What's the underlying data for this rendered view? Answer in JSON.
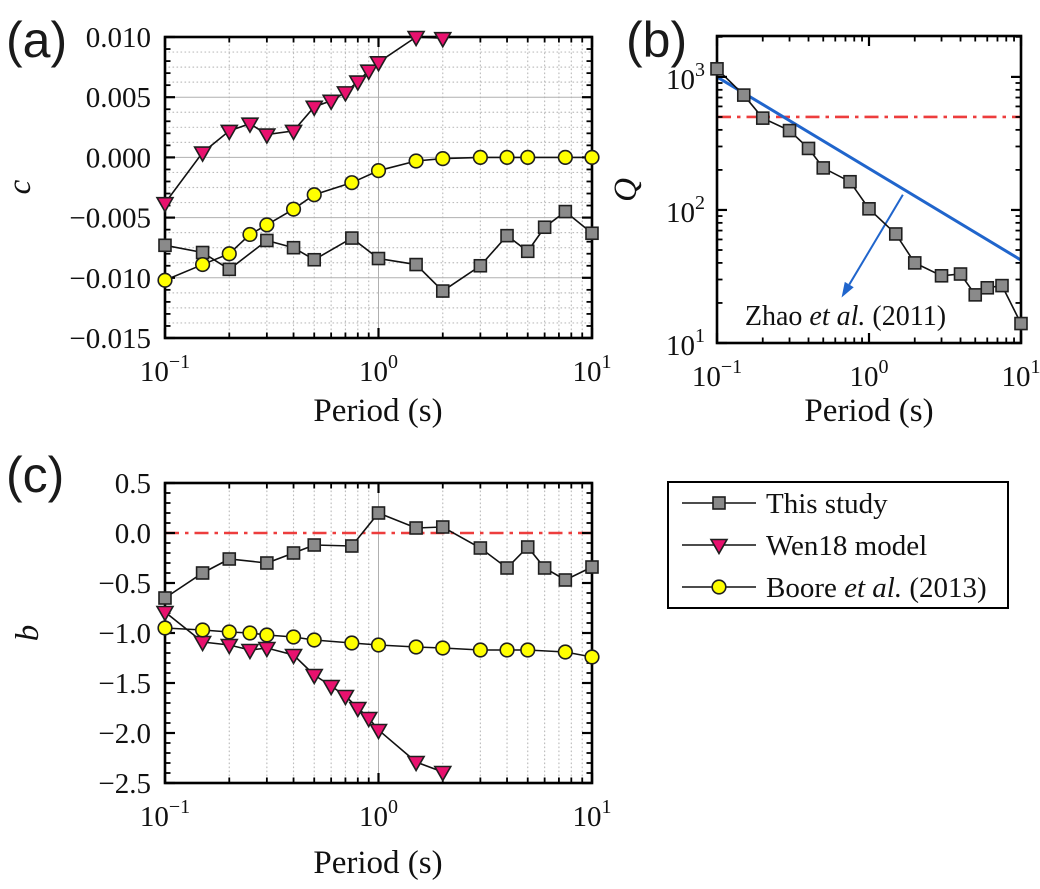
{
  "colors": {
    "gray": "#8a8a8a",
    "gray_edge": "#1f1f1f",
    "magenta": "#e8116e",
    "yellow": "#ffff00",
    "blue": "#2065cc",
    "red": "#ed3d3d",
    "line": "#111111",
    "grid_solid": "#b0b0b0",
    "grid_dot": "#bdbdbd"
  },
  "legend": {
    "entries": [
      {
        "marker": "square",
        "color": "gray",
        "label_parts": [
          {
            "t": "This study"
          }
        ]
      },
      {
        "marker": "triangle",
        "color": "magenta",
        "label_parts": [
          {
            "t": "Wen18 model"
          }
        ]
      },
      {
        "marker": "circle",
        "color": "yellow",
        "label_parts": [
          {
            "t": "Boore "
          },
          {
            "t": "et al.",
            "italic": true
          },
          {
            "t": " (2013)"
          }
        ]
      }
    ]
  },
  "chart_data": [
    {
      "id": "a",
      "panel_label": "(a)",
      "type": "line",
      "xlabel": "Period (s)",
      "ylabel": "c",
      "x_scale": "log",
      "xlim": [
        0.1,
        10
      ],
      "x_ticks": [
        0.1,
        1,
        10
      ],
      "x_tick_labels": [
        {
          "m": "10",
          "e": "−1"
        },
        {
          "m": "10",
          "e": "0"
        },
        {
          "m": "10",
          "e": "1"
        }
      ],
      "y_scale": "linear",
      "ylim": [
        -0.015,
        0.01
      ],
      "y_ticks": [
        0.01,
        0.005,
        0.0,
        -0.005,
        -0.01,
        -0.015
      ],
      "y_tick_labels": [
        "0.010",
        "0.005",
        "0.000",
        "−0.005",
        "−0.010",
        "−0.015"
      ],
      "y_minor_step": 0.001,
      "grid": {
        "x_major": true,
        "x_minor_dotted": true,
        "y_major": true,
        "y_minor_dotted": true,
        "y_minor_grid_step": 0.00125
      },
      "series": [
        {
          "name": "This study",
          "marker": "square",
          "color": "gray",
          "x": [
            0.1,
            0.15,
            0.2,
            0.3,
            0.4,
            0.5,
            0.75,
            1,
            1.5,
            2,
            3,
            4,
            5,
            6,
            7.5,
            10
          ],
          "y": [
            -0.0073,
            -0.0079,
            -0.0093,
            -0.0069,
            -0.0075,
            -0.0085,
            -0.0067,
            -0.0084,
            -0.0089,
            -0.0111,
            -0.009,
            -0.0065,
            -0.0078,
            -0.0058,
            -0.0045,
            -0.0063
          ]
        },
        {
          "name": "Wen18 model",
          "marker": "triangle",
          "color": "magenta",
          "x": [
            0.1,
            0.15,
            0.2,
            0.25,
            0.3,
            0.4,
            0.5,
            0.6,
            0.7,
            0.8,
            0.9,
            1,
            1.5,
            2
          ],
          "y": [
            -0.0038,
            0.0004,
            0.0022,
            0.0028,
            0.0019,
            0.0022,
            0.0042,
            0.0047,
            0.0054,
            0.0063,
            0.0072,
            0.0079,
            0.01,
            0.0099
          ]
        },
        {
          "name": "Boore et al. (2013)",
          "marker": "circle",
          "color": "yellow",
          "x": [
            0.1,
            0.15,
            0.2,
            0.25,
            0.3,
            0.4,
            0.5,
            0.75,
            1,
            1.5,
            2,
            3,
            4,
            5,
            7.5,
            10
          ],
          "y": [
            -0.0102,
            -0.0089,
            -0.008,
            -0.0064,
            -0.0056,
            -0.0043,
            -0.0031,
            -0.0021,
            -0.0011,
            -0.0003,
            -0.0001,
            0,
            0,
            0,
            0,
            0
          ]
        }
      ],
      "reflines": []
    },
    {
      "id": "b",
      "panel_label": "(b)",
      "type": "line",
      "xlabel": "Period (s)",
      "ylabel": "Q",
      "x_scale": "log",
      "xlim": [
        0.1,
        10
      ],
      "x_ticks": [
        0.1,
        1,
        10
      ],
      "x_tick_labels": [
        {
          "m": "10",
          "e": "−1"
        },
        {
          "m": "10",
          "e": "0"
        },
        {
          "m": "10",
          "e": "1"
        }
      ],
      "y_scale": "log",
      "ylim": [
        10,
        2030
      ],
      "y_ticks": [
        1000,
        100,
        10
      ],
      "y_tick_labels": [
        {
          "m": "10",
          "e": "3"
        },
        {
          "m": "10",
          "e": "2"
        },
        {
          "m": "10",
          "e": "1"
        }
      ],
      "grid": {
        "x_major": false,
        "x_minor_dotted": false,
        "y_major": false,
        "y_minor_dotted": false
      },
      "series": [
        {
          "name": "This study",
          "marker": "square",
          "color": "gray",
          "x": [
            0.1,
            0.15,
            0.2,
            0.3,
            0.4,
            0.5,
            0.75,
            1,
            1.5,
            2,
            3,
            4,
            5,
            6,
            7.5,
            10
          ],
          "y": [
            1150,
            730,
            490,
            395,
            290,
            207,
            163,
            102,
            66,
            40,
            32,
            33,
            23,
            26,
            27,
            14
          ]
        }
      ],
      "lines": [
        {
          "name": "Zhao et al. (2011) Q model",
          "color": "blue",
          "x": [
            0.1,
            10
          ],
          "y": [
            1000,
            42
          ]
        }
      ],
      "reflines": [
        {
          "y": 500,
          "color": "red",
          "style": "dashdot"
        }
      ],
      "annotation": {
        "text_parts": [
          {
            "t": "Zhao "
          },
          {
            "t": "et al.",
            "italic": true
          },
          {
            "t": " (2011)"
          }
        ],
        "anchor_data": [
          0.7,
          16.2
        ],
        "arrow_from_data": [
          1.67,
          130
        ],
        "arrow_to_data": [
          0.66,
          22
        ]
      }
    },
    {
      "id": "c",
      "panel_label": "(c)",
      "type": "line",
      "xlabel": "Period (s)",
      "ylabel": "b",
      "x_scale": "log",
      "xlim": [
        0.1,
        10
      ],
      "x_ticks": [
        0.1,
        1,
        10
      ],
      "x_tick_labels": [
        {
          "m": "10",
          "e": "−1"
        },
        {
          "m": "10",
          "e": "0"
        },
        {
          "m": "10",
          "e": "1"
        }
      ],
      "y_scale": "linear",
      "ylim": [
        -2.5,
        0.5
      ],
      "y_ticks": [
        0.5,
        0.0,
        -0.5,
        -1.0,
        -1.5,
        -2.0,
        -2.5
      ],
      "y_tick_labels": [
        "0.5",
        "0.0",
        "−0.5",
        "−1.0",
        "−1.5",
        "−2.0",
        "−2.5"
      ],
      "y_minor_step": 0.1,
      "grid": {
        "x_major": true,
        "x_minor_dotted": true,
        "y_major": false,
        "y_minor_dotted": false
      },
      "series": [
        {
          "name": "This study",
          "marker": "square",
          "color": "gray",
          "x": [
            0.1,
            0.15,
            0.2,
            0.3,
            0.4,
            0.5,
            0.75,
            1,
            1.5,
            2,
            3,
            4,
            5,
            6,
            7.5,
            10
          ],
          "y": [
            -0.65,
            -0.4,
            -0.26,
            -0.3,
            -0.2,
            -0.12,
            -0.13,
            0.2,
            0.05,
            0.06,
            -0.15,
            -0.35,
            -0.14,
            -0.35,
            -0.47,
            -0.34
          ]
        },
        {
          "name": "Wen18 model",
          "marker": "triangle",
          "color": "magenta",
          "x": [
            0.1,
            0.15,
            0.2,
            0.25,
            0.3,
            0.4,
            0.5,
            0.6,
            0.7,
            0.8,
            0.9,
            1,
            1.5,
            2
          ],
          "y": [
            -0.79,
            -1.09,
            -1.12,
            -1.17,
            -1.15,
            -1.22,
            -1.42,
            -1.53,
            -1.63,
            -1.75,
            -1.85,
            -1.97,
            -2.29,
            -2.39
          ]
        },
        {
          "name": "Boore et al. (2013)",
          "marker": "circle",
          "color": "yellow",
          "x": [
            0.1,
            0.15,
            0.2,
            0.25,
            0.3,
            0.4,
            0.5,
            0.75,
            1,
            1.5,
            2,
            3,
            4,
            5,
            7.5,
            10
          ],
          "y": [
            -0.95,
            -0.97,
            -0.99,
            -1.0,
            -1.02,
            -1.04,
            -1.07,
            -1.1,
            -1.12,
            -1.14,
            -1.15,
            -1.17,
            -1.17,
            -1.17,
            -1.19,
            -1.24
          ]
        }
      ],
      "reflines": [
        {
          "y": 0,
          "color": "red",
          "style": "dashdot"
        }
      ]
    }
  ]
}
